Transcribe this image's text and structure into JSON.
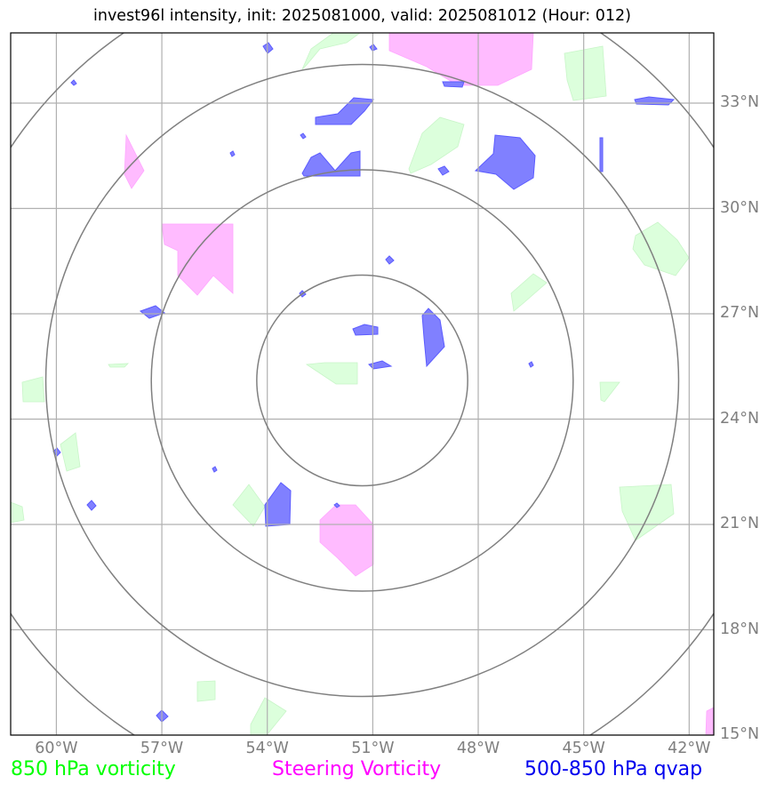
{
  "title": "invest96l intensity, init: 2025081000, valid: 2025081012 (Hour: 012)",
  "map": {
    "lon_range": [
      -61.3,
      -41.3
    ],
    "lat_range": [
      15,
      35
    ],
    "center": {
      "lon": -51.3,
      "lat": 25.1
    },
    "range_ring_degrees": [
      3,
      6,
      9,
      12
    ],
    "gridlines": true
  },
  "lat_labels": [
    {
      "lat": 33,
      "text": "33°N"
    },
    {
      "lat": 30,
      "text": "30°N"
    },
    {
      "lat": 27,
      "text": "27°N"
    },
    {
      "lat": 24,
      "text": "24°N"
    },
    {
      "lat": 21,
      "text": "21°N"
    },
    {
      "lat": 18,
      "text": "18°N"
    },
    {
      "lat": 15,
      "text": "15°N"
    }
  ],
  "lon_labels": [
    {
      "lon": -60,
      "text": "60°W"
    },
    {
      "lon": -57,
      "text": "57°W"
    },
    {
      "lon": -54,
      "text": "54°W"
    },
    {
      "lon": -51,
      "text": "51°W"
    },
    {
      "lon": -48,
      "text": "48°W"
    },
    {
      "lon": -45,
      "text": "45°W"
    },
    {
      "lon": -42,
      "text": "42°W"
    }
  ],
  "legend": {
    "vort850": {
      "label": "850 hPa vorticity",
      "color": "#00ff00",
      "fill": "#dcffdc"
    },
    "steering": {
      "label": "Steering Vorticity",
      "color": "#ff00ff",
      "fill": "#ffbbff"
    },
    "qvap": {
      "label": "500-850 hPa qvap",
      "color": "#0000ee",
      "fill": "#8080ff"
    }
  },
  "colors": {
    "grid": "#b0b0b0",
    "rings": "#808080",
    "axis_labels": "#7f7f7f"
  }
}
